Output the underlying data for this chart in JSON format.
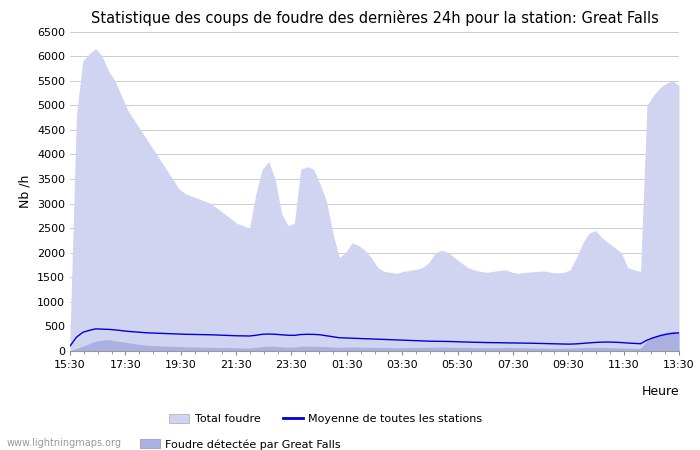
{
  "title": "Statistique des coups de foudre des dernières 24h pour la station: Great Falls",
  "xlabel": "Heure",
  "ylabel": "Nb /h",
  "ylim": [
    0,
    6500
  ],
  "yticks": [
    0,
    500,
    1000,
    1500,
    2000,
    2500,
    3000,
    3500,
    4000,
    4500,
    5000,
    5500,
    6000,
    6500
  ],
  "x_labels": [
    "15:30",
    "17:30",
    "19:30",
    "21:30",
    "23:30",
    "01:30",
    "03:30",
    "05:30",
    "07:30",
    "09:30",
    "11:30",
    "13:30"
  ],
  "background_color": "#ffffff",
  "plot_bg_color": "#ffffff",
  "grid_color": "#cccccc",
  "total_foudre_color": "#d0d4f0",
  "local_foudre_color": "#aab0e0",
  "moyenne_color": "#0000dd",
  "watermark": "www.lightningmaps.org",
  "total_foudre_data": [
    300,
    4800,
    5900,
    6050,
    6150,
    6000,
    5700,
    5500,
    5200,
    4900,
    4700,
    4500,
    4300,
    4100,
    3900,
    3700,
    3500,
    3300,
    3200,
    3150,
    3100,
    3050,
    3000,
    2900,
    2800,
    2700,
    2600,
    2550,
    2500,
    3200,
    3700,
    3850,
    3500,
    2800,
    2550,
    2600,
    3700,
    3750,
    3700,
    3400,
    3050,
    2400,
    1900,
    2000,
    2200,
    2150,
    2050,
    1900,
    1700,
    1620,
    1600,
    1580,
    1620,
    1640,
    1660,
    1700,
    1800,
    2000,
    2050,
    2000,
    1900,
    1800,
    1700,
    1650,
    1620,
    1600,
    1620,
    1640,
    1650,
    1600,
    1580,
    1600,
    1610,
    1620,
    1630,
    1600,
    1590,
    1600,
    1650,
    1900,
    2200,
    2400,
    2450,
    2300,
    2200,
    2100,
    2000,
    1700,
    1650,
    1620,
    5000,
    5200,
    5350,
    5450,
    5500,
    5400
  ],
  "local_foudre_data": [
    10,
    50,
    100,
    150,
    200,
    220,
    230,
    210,
    190,
    170,
    150,
    130,
    120,
    110,
    105,
    100,
    95,
    90,
    85,
    82,
    80,
    78,
    75,
    72,
    70,
    68,
    65,
    62,
    60,
    75,
    90,
    100,
    95,
    85,
    78,
    80,
    95,
    100,
    98,
    92,
    88,
    82,
    75,
    78,
    82,
    80,
    78,
    75,
    72,
    70,
    68,
    66,
    68,
    70,
    72,
    74,
    76,
    78,
    80,
    78,
    75,
    72,
    70,
    68,
    66,
    64,
    66,
    68,
    70,
    68,
    66,
    64,
    62,
    60,
    58,
    56,
    55,
    56,
    58,
    62,
    68,
    72,
    75,
    72,
    68,
    65,
    62,
    58,
    55,
    54,
    200,
    280,
    340,
    380,
    400,
    390
  ],
  "moyenne_data": [
    100,
    280,
    380,
    420,
    450,
    445,
    440,
    430,
    415,
    400,
    390,
    380,
    370,
    365,
    360,
    355,
    350,
    345,
    340,
    338,
    335,
    332,
    330,
    325,
    320,
    315,
    310,
    308,
    305,
    320,
    340,
    345,
    340,
    330,
    320,
    318,
    335,
    340,
    338,
    330,
    310,
    290,
    270,
    265,
    260,
    255,
    250,
    245,
    240,
    235,
    230,
    225,
    220,
    215,
    210,
    205,
    200,
    198,
    196,
    194,
    190,
    185,
    182,
    178,
    175,
    172,
    170,
    168,
    166,
    164,
    162,
    160,
    158,
    155,
    152,
    148,
    145,
    142,
    140,
    145,
    155,
    165,
    175,
    180,
    182,
    178,
    172,
    162,
    155,
    148,
    220,
    270,
    310,
    340,
    360,
    370
  ],
  "n_points": 96
}
